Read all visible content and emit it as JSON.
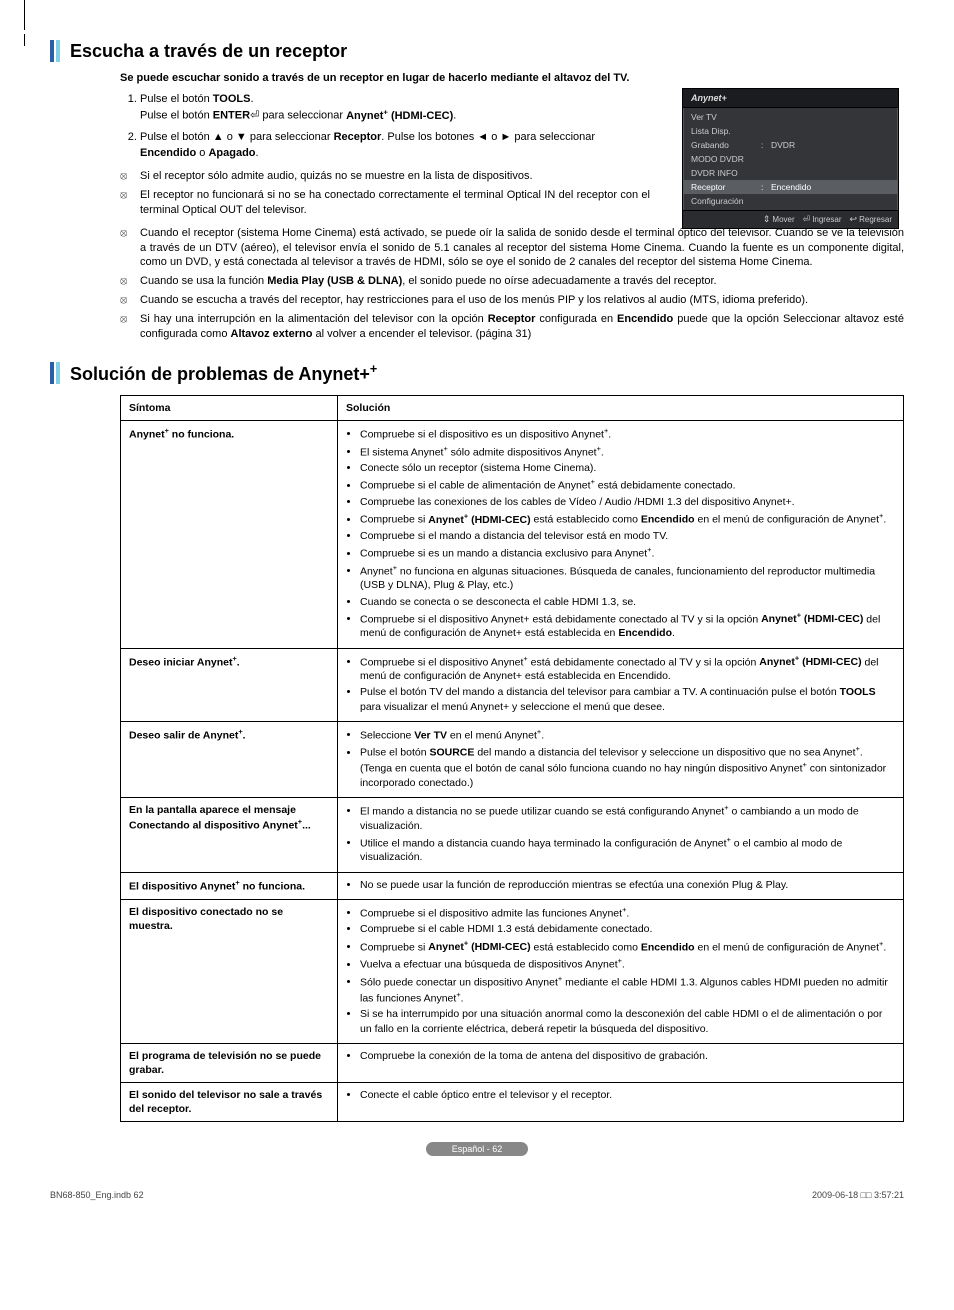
{
  "section1": {
    "title": "Escucha a través de un receptor",
    "intro": "Se puede escuchar sonido a través de un receptor en lugar de hacerlo mediante el altavoz del TV.",
    "steps": [
      "Pulse el botón <b>TOOLS</b>.<br>Pulse el botón <b>ENTER</b>⏎ para seleccionar <b>Anynet<sup class='plus'>+</sup> (HDMI-CEC)</b>.",
      "Pulse el botón ▲ o ▼ para seleccionar <b>Receptor</b>. Pulse los botones ◄ o ► para seleccionar <b>Encendido</b> o <b>Apagado</b>."
    ],
    "notes_narrow": [
      "Si el receptor sólo admite audio, quizás no se muestre en la lista de dispositivos.",
      "El receptor no funcionará si no se ha conectado correctamente el terminal Optical IN del receptor con el terminal Optical OUT del televisor."
    ],
    "notes_wide": [
      "Cuando el receptor (sistema Home Cinema) está activado, se puede oír la salida de sonido desde el terminal óptico del televisor. Cuando se ve la televisión a través de un DTV (aéreo), el televisor envía el sonido de 5.1 canales al receptor del sistema Home Cinema. Cuando la fuente es un componente digital, como un DVD, y está conectada al televisor a través de HDMI, sólo se oye el sonido de 2 canales del receptor del sistema Home Cinema.",
      "Cuando se usa la función <b>Media Play (USB & DLNA)</b>, el sonido puede no oírse adecuadamente a través del receptor.",
      "Cuando se escucha a través del receptor, hay restricciones para el uso de los menús PIP y los relativos al audio (MTS, idioma preferido).",
      "Si hay una interrupción en la alimentación del televisor con la opción <b>Receptor</b> configurada en <b>Encendido</b> puede que la opción Seleccionar altavoz esté configurada como <b>Altavoz externo</b> al volver a encender el televisor. (página 31)"
    ]
  },
  "menu": {
    "title": "Anynet+",
    "rows": [
      {
        "label": "Ver TV",
        "colon": "",
        "val": ""
      },
      {
        "label": "Lista Disp.",
        "colon": "",
        "val": ""
      },
      {
        "label": "Grabando",
        "colon": ":",
        "val": "DVDR"
      },
      {
        "label": "MODO DVDR",
        "colon": "",
        "val": ""
      },
      {
        "label": "DVDR INFO",
        "colon": "",
        "val": ""
      },
      {
        "label": "Receptor",
        "colon": ":",
        "val": "Encendido",
        "highlight": true
      },
      {
        "label": "Configuración",
        "colon": "",
        "val": ""
      }
    ],
    "footer": [
      {
        "sym": "⇕",
        "txt": "Mover"
      },
      {
        "sym": "⏎",
        "txt": "Ingresar"
      },
      {
        "sym": "↩",
        "txt": "Regresar"
      }
    ]
  },
  "section2": {
    "title": "Solución de problemas de Anynet+",
    "headers": [
      "Síntoma",
      "Solución"
    ],
    "rows": [
      {
        "symptom": "Anynet<sup class='plus'>+</sup> no funciona.",
        "solutions": [
          "Compruebe si el dispositivo es un dispositivo Anynet<sup class='plus'>+</sup>.",
          "El sistema Anynet<sup class='plus'>+</sup> sólo admite dispositivos Anynet<sup class='plus'>+</sup>.",
          "Conecte sólo un receptor (sistema Home Cinema).",
          "Compruebe si el cable de alimentación de Anynet<sup class='plus'>+</sup> está debidamente conectado.",
          "Compruebe las conexiones de los cables de Vídeo / Audio /HDMI 1.3 del dispositivo Anynet+.",
          "Compruebe si <b>Anynet<sup class='plus'>+</sup> (HDMI-CEC)</b> está establecido como <b>Encendido</b> en el menú de configuración de Anynet<sup class='plus'>+</sup>.",
          "Compruebe si el mando a distancia del televisor está en modo TV.",
          "Compruebe si es un mando a distancia exclusivo para Anynet<sup class='plus'>+</sup>.",
          "Anynet<sup class='plus'>+</sup> no funciona en algunas situaciones. Búsqueda de canales, funcionamiento del reproductor multimedia (USB y DLNA), Plug & Play, etc.)",
          "Cuando se conecta o se desconecta el cable HDMI 1.3, se.",
          "Compruebe si el dispositivo Anynet+ está debidamente conectado al TV y si la opción <b>Anynet<sup class='plus'>+</sup> (HDMI-CEC)</b> del menú de configuración de Anynet+ está establecida en <b>Encendido</b>."
        ]
      },
      {
        "symptom": "Deseo iniciar Anynet<sup class='plus'>+</sup>.",
        "solutions": [
          "Compruebe si el dispositivo Anynet<sup class='plus'>+</sup> está debidamente conectado al TV y si la opción <b>Anynet<sup class='plus'>+</sup> (HDMI-CEC)</b> del menú de configuración de Anynet+ está establecida en Encendido.",
          "Pulse el botón TV del mando a distancia del televisor para cambiar a TV. A continuación pulse el botón <b>TOOLS</b> para visualizar el menú Anynet+ y seleccione el menú que desee."
        ]
      },
      {
        "symptom": "Deseo salir de Anynet<sup class='plus'>+</sup>.",
        "solutions": [
          "Seleccione <b>Ver TV</b> en el menú Anynet<sup class='plus'>+</sup>.",
          "Pulse el botón <b>SOURCE</b> del mando a distancia del televisor y seleccione un dispositivo que no sea Anynet<sup class='plus'>+</sup>. (Tenga en cuenta que el botón de canal sólo funciona cuando no hay ningún dispositivo Anynet<sup class='plus'>+</sup> con sintonizador incorporado conectado.)"
        ]
      },
      {
        "symptom": "En la pantalla aparece el mensaje Conectando al dispositivo Anynet<sup class='plus'>+</sup>...",
        "solutions": [
          "El mando a distancia no se puede utilizar cuando se está configurando Anynet<sup class='plus'>+</sup> o cambiando a un modo de visualización.",
          "Utilice el mando a distancia cuando haya terminado la configuración de Anynet<sup class='plus'>+</sup> o el cambio al modo de visualización."
        ]
      },
      {
        "symptom": "El dispositivo Anynet<sup class='plus'>+</sup> no funciona.",
        "solutions": [
          "No se puede usar la función de reproducción mientras se efectúa una conexión Plug & Play."
        ]
      },
      {
        "symptom": "El dispositivo conectado no se muestra.",
        "solutions": [
          "Compruebe si el dispositivo admite las funciones Anynet<sup class='plus'>+</sup>.",
          "Compruebe si el cable HDMI 1.3 está debidamente conectado.",
          "Compruebe si <b>Anynet<sup class='plus'>+</sup> (HDMI-CEC)</b> está establecido como <b>Encendido</b> en el menú de configuración de Anynet<sup class='plus'>+</sup>.",
          "Vuelva a efectuar una búsqueda de dispositivos Anynet<sup class='plus'>+</sup>.",
          "Sólo puede conectar un dispositivo Anynet<sup class='plus'>+</sup> mediante el cable HDMI 1.3. Algunos cables HDMI pueden no admitir las funciones Anynet<sup class='plus'>+</sup>.",
          "Si se ha interrumpido por una situación anormal como la desconexión del cable HDMI o el de alimentación o por un fallo en la corriente eléctrica, deberá repetir la búsqueda del dispositivo."
        ]
      },
      {
        "symptom": "El programa de televisión no se puede grabar.",
        "solutions": [
          "Compruebe la conexión de la toma de antena del dispositivo de grabación."
        ]
      },
      {
        "symptom": "El sonido del televisor no sale a través del receptor.",
        "solutions": [
          "Conecte el cable óptico entre el televisor y el receptor."
        ]
      }
    ]
  },
  "badge": "Español - 62",
  "printLeft": "BN68-850_Eng.indb   62",
  "printRight": "2009-06-18   □□ 3:57:21"
}
